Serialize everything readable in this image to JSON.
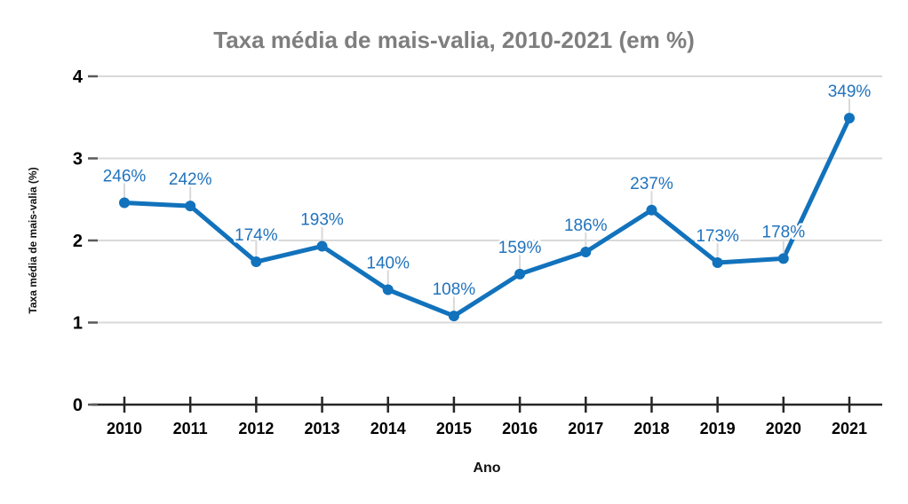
{
  "chart_data": {
    "type": "line",
    "title": "Taxa média de mais-valia, 2010-2021 (em %)",
    "xlabel": "Ano",
    "ylabel": "Taxa média de mais-valia (%)",
    "categories": [
      "2010",
      "2011",
      "2012",
      "2013",
      "2014",
      "2015",
      "2016",
      "2017",
      "2018",
      "2019",
      "2020",
      "2021"
    ],
    "series": [
      {
        "name": "Taxa média de mais-valia",
        "values": [
          2.46,
          2.42,
          1.74,
          1.93,
          1.4,
          1.08,
          1.59,
          1.86,
          2.37,
          1.73,
          1.78,
          3.49
        ]
      }
    ],
    "data_labels": [
      "246%",
      "242%",
      "174%",
      "193%",
      "140%",
      "108%",
      "159%",
      "186%",
      "237%",
      "173%",
      "178%",
      "349%"
    ],
    "ylim": [
      0,
      4
    ],
    "yticks": [
      0,
      1,
      2,
      3,
      4
    ],
    "grid": true,
    "legend": "none",
    "colors": {
      "line": "#1272bc",
      "marker": "#1272bc",
      "label_text": "#2173bd",
      "label_halo": "#ffffff",
      "leader_line": "#d9d9d9",
      "grid": "#d9d9d9",
      "axis": "#262626",
      "y_tick": "#595959",
      "tick_label": "#000000",
      "title": "#7e7e7e"
    }
  }
}
